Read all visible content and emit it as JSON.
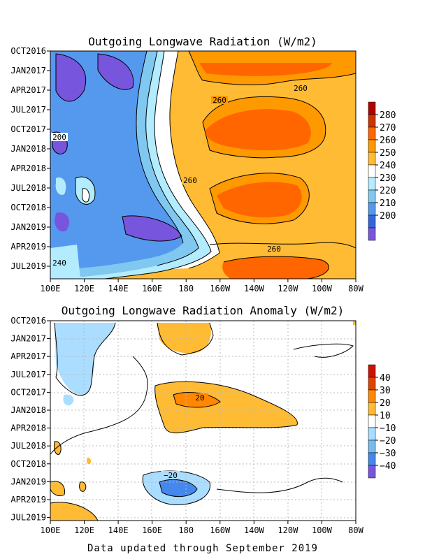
{
  "chart_data": [
    {
      "type": "heatmap",
      "title": "Outgoing Longwave Radiation (W/m2)",
      "x_ticks": [
        "100E",
        "120E",
        "140E",
        "160E",
        "180",
        "160W",
        "140W",
        "120W",
        "100W",
        "80W"
      ],
      "y_ticks": [
        "OCT2016",
        "JAN2017",
        "APR2017",
        "JUL2017",
        "OCT2017",
        "JAN2018",
        "APR2018",
        "JUL2018",
        "OCT2018",
        "JAN2019",
        "APR2019",
        "JUL2019"
      ],
      "colorbar": {
        "labels": [
          "280",
          "270",
          "260",
          "250",
          "240",
          "230",
          "220",
          "210",
          "200"
        ],
        "colors": [
          "#b30000",
          "#cc3300",
          "#ff6600",
          "#ff9900",
          "#ffbb33",
          "#ffffff",
          "#b3ecff",
          "#80c8f0",
          "#5599ee",
          "#3366dd",
          "#7755dd"
        ]
      },
      "contour_labels": [
        "260",
        "260",
        "200",
        "260",
        "240",
        "260"
      ]
    },
    {
      "type": "heatmap",
      "title": "Outgoing Longwave Radiation Anomaly (W/m2)",
      "x_ticks": [
        "100E",
        "120E",
        "140E",
        "160E",
        "180",
        "160W",
        "140W",
        "120W",
        "100W",
        "80W"
      ],
      "y_ticks": [
        "OCT2016",
        "JAN2017",
        "APR2017",
        "JUL2017",
        "OCT2017",
        "JAN2018",
        "APR2018",
        "JUL2018",
        "OCT2018",
        "JAN2019",
        "APR2019",
        "JUL2019"
      ],
      "colorbar": {
        "labels": [
          "40",
          "30",
          "20",
          "10",
          "−10",
          "−20",
          "−30",
          "−40"
        ],
        "colors": [
          "#cc1100",
          "#dd4400",
          "#ff8800",
          "#ffbb33",
          "#ffffff",
          "#aaddff",
          "#77bbee",
          "#4488ee",
          "#7755dd"
        ]
      },
      "contour_labels": [
        "20",
        "−20"
      ]
    }
  ],
  "footer": "Data updated through September 2019"
}
